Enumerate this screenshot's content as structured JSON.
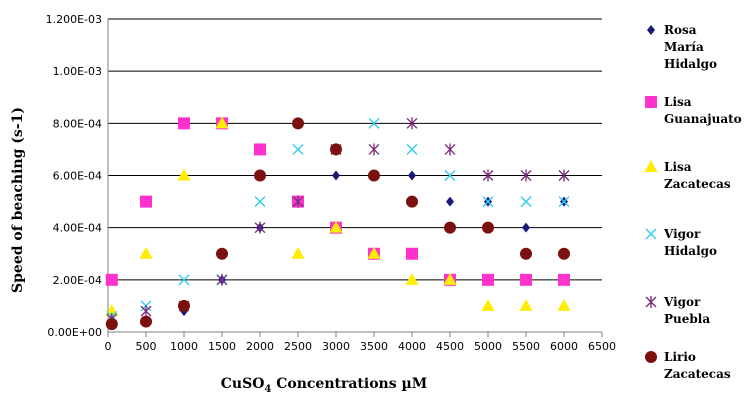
{
  "chart_data": {
    "type": "scatter",
    "xlabel_main": "CuSO",
    "xlabel_sub": "4",
    "xlabel_rest": " Concentrations µM",
    "ylabel": "Speed of beaching (s-1)",
    "xlim": [
      0,
      6500
    ],
    "ylim": [
      0,
      0.0012
    ],
    "x_ticks": [
      0,
      500,
      1000,
      1500,
      2000,
      2500,
      3000,
      3500,
      4000,
      4500,
      5000,
      5500,
      6000,
      6500
    ],
    "y_ticks": [
      0,
      0.0002,
      0.0004,
      0.0006,
      0.0008,
      0.001,
      0.0012
    ],
    "y_tick_labels": [
      "0.00E+00",
      "2.00E-04",
      "4.00E-04",
      "6.00E-04",
      "8.00E-04",
      "1.00E-03",
      "1.200E-03"
    ],
    "grid": "horizontal",
    "legend_position": "right",
    "series": [
      {
        "name": [
          "Rosa",
          "María",
          "Hidalgo"
        ],
        "marker": "diamond",
        "color": "#1a1a7a",
        "points": [
          [
            50,
            7e-05
          ],
          [
            500,
            4e-05
          ],
          [
            1000,
            8e-05
          ],
          [
            1500,
            0.0002
          ],
          [
            2000,
            0.0004
          ],
          [
            2500,
            0.0005
          ],
          [
            3000,
            0.0006
          ],
          [
            3500,
            0.0003
          ],
          [
            4000,
            0.0006
          ],
          [
            4500,
            0.0005
          ],
          [
            5000,
            0.0005
          ],
          [
            5500,
            0.0004
          ],
          [
            6000,
            0.0005
          ]
        ]
      },
      {
        "name": [
          "Lisa",
          "Guanajuato"
        ],
        "marker": "square",
        "color": "#ff33cc",
        "points": [
          [
            50,
            0.0002
          ],
          [
            500,
            0.0005
          ],
          [
            1000,
            0.0008
          ],
          [
            1500,
            0.0008
          ],
          [
            2000,
            0.0007
          ],
          [
            2500,
            0.0005
          ],
          [
            3000,
            0.0004
          ],
          [
            3500,
            0.0003
          ],
          [
            4000,
            0.0003
          ],
          [
            4500,
            0.0002
          ],
          [
            5000,
            0.0002
          ],
          [
            5500,
            0.0002
          ],
          [
            6000,
            0.0002
          ]
        ]
      },
      {
        "name": [
          "Lisa",
          "Zacatecas"
        ],
        "marker": "triangle",
        "color": "#ffee00",
        "points": [
          [
            50,
            8e-05
          ],
          [
            500,
            0.0003
          ],
          [
            1000,
            0.0006
          ],
          [
            1500,
            0.0008
          ],
          [
            2500,
            0.0003
          ],
          [
            3000,
            0.0004
          ],
          [
            3500,
            0.0003
          ],
          [
            4000,
            0.0002
          ],
          [
            4500,
            0.0002
          ],
          [
            5000,
            0.0001
          ],
          [
            5500,
            0.0001
          ],
          [
            6000,
            0.0001
          ]
        ]
      },
      {
        "name": [
          "Vigor",
          "Hidalgo"
        ],
        "marker": "x",
        "color": "#33ccee",
        "points": [
          [
            50,
            6e-05
          ],
          [
            500,
            0.0001
          ],
          [
            1000,
            0.0002
          ],
          [
            1500,
            0.0002
          ],
          [
            2000,
            0.0005
          ],
          [
            2500,
            0.0007
          ],
          [
            3000,
            0.0007
          ],
          [
            3500,
            0.0008
          ],
          [
            4000,
            0.0007
          ],
          [
            4500,
            0.0006
          ],
          [
            5000,
            0.0005
          ],
          [
            5500,
            0.0005
          ],
          [
            6000,
            0.0005
          ]
        ]
      },
      {
        "name": [
          "Vigor",
          "Puebla"
        ],
        "marker": "asterisk",
        "color": "#7a2a7a",
        "points": [
          [
            50,
            5e-05
          ],
          [
            500,
            8e-05
          ],
          [
            1000,
            0.0001
          ],
          [
            1500,
            0.0002
          ],
          [
            2000,
            0.0004
          ],
          [
            2500,
            0.0005
          ],
          [
            3000,
            0.0007
          ],
          [
            3500,
            0.0007
          ],
          [
            4000,
            0.0008
          ],
          [
            4500,
            0.0007
          ],
          [
            5000,
            0.0006
          ],
          [
            5500,
            0.0006
          ],
          [
            6000,
            0.0006
          ]
        ]
      },
      {
        "name": [
          "Lirio",
          "Zacatecas"
        ],
        "marker": "circle",
        "color": "#7a1010",
        "points": [
          [
            50,
            3e-05
          ],
          [
            500,
            4e-05
          ],
          [
            1000,
            0.0001
          ],
          [
            1500,
            0.0003
          ],
          [
            2000,
            0.0006
          ],
          [
            2500,
            0.0008
          ],
          [
            3000,
            0.0007
          ],
          [
            3500,
            0.0006
          ],
          [
            4000,
            0.0005
          ],
          [
            4500,
            0.0004
          ],
          [
            5000,
            0.0004
          ],
          [
            5500,
            0.0003
          ],
          [
            6000,
            0.0003
          ]
        ]
      }
    ]
  }
}
